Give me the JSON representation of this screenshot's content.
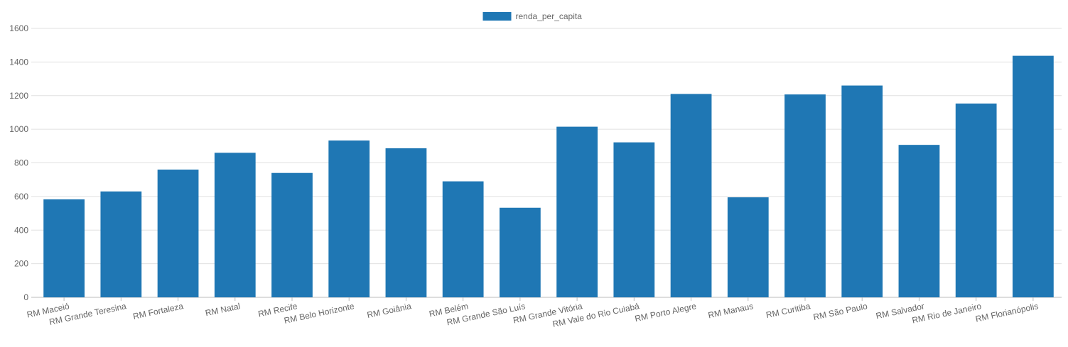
{
  "chart_data": {
    "type": "bar",
    "title": "",
    "xlabel": "",
    "ylabel": "",
    "categories": [
      "RM Maceió",
      "RM Grande Teresina",
      "RM Fortaleza",
      "RM Natal",
      "RM Recife",
      "RM Belo Horizonte",
      "RM Goiânia",
      "RM Belém",
      "RM Grande São Luís",
      "RM Grande Vitória",
      "RM Vale do Rio Cuiabá",
      "RM Porto Alegre",
      "RM Manaus",
      "RM Curitiba",
      "RM São Paulo",
      "RM Salvador",
      "RM Rio de Janeiro",
      "RM Florianópolis"
    ],
    "series": [
      {
        "name": "renda_per_capita",
        "color": "#1f77b4",
        "values": [
          583,
          630,
          760,
          860,
          740,
          933,
          887,
          690,
          533,
          1015,
          922,
          1210,
          595,
          1207,
          1260,
          907,
          1153,
          1437
        ]
      }
    ],
    "ylim": [
      0,
      1600
    ],
    "yticks": [
      0,
      200,
      400,
      600,
      800,
      1000,
      1200,
      1400,
      1600
    ],
    "grid": true,
    "legend_position": "top-center"
  }
}
